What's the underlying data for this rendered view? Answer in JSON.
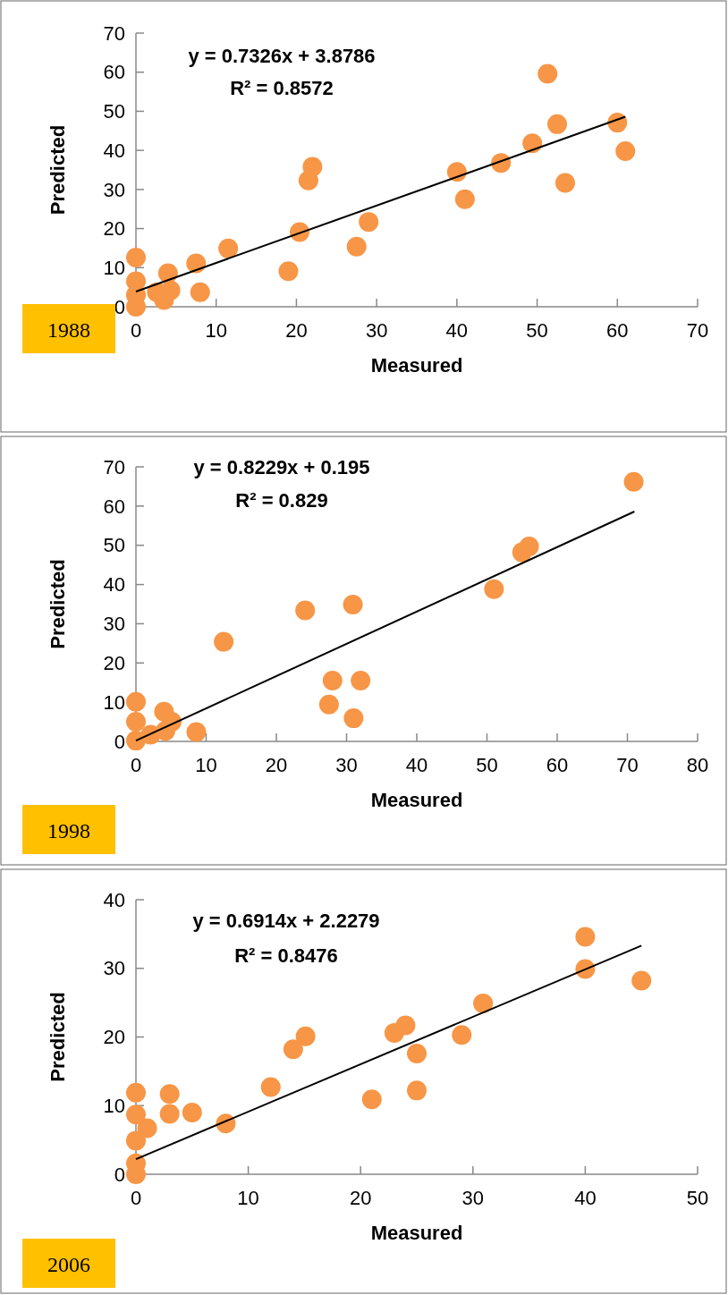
{
  "chart_data": [
    {
      "type": "scatter",
      "xlabel": "Measured",
      "ylabel": "Predicted",
      "xlim": [
        0,
        70
      ],
      "ylim": [
        0,
        70
      ],
      "xticks": [
        0,
        10,
        20,
        30,
        40,
        50,
        60,
        70
      ],
      "yticks": [
        0,
        10,
        20,
        30,
        40,
        50,
        60,
        70
      ],
      "grid": false,
      "annotations": [
        "y = 0.7326x + 3.8786",
        "R² = 0.8572",
        "1988"
      ],
      "series": [
        {
          "color": "#f79646",
          "marker": "circle",
          "x": [
            0,
            0,
            0,
            0,
            2.6,
            3.5,
            4.0,
            4.3,
            7.5,
            8.0,
            11.5,
            19.0,
            20.4,
            21.5,
            22.0,
            27.5,
            29.0,
            40.0,
            41.0,
            45.5,
            49.4,
            51.3,
            52.5,
            53.5,
            60.0,
            61.0
          ],
          "values": [
            12.6,
            6.5,
            3,
            0,
            3.7,
            1.7,
            8.6,
            4.2,
            11.1,
            3.7,
            14.9,
            9.1,
            19.1,
            32.3,
            35.8,
            15.4,
            21.7,
            34.5,
            27.5,
            36.8,
            41.8,
            59.6,
            46.7,
            31.7,
            47.1,
            39.8
          ]
        },
        {
          "type": "line",
          "color": "#000000",
          "marker": "none",
          "x": [
            0,
            61
          ],
          "values": [
            3.9,
            48.6
          ]
        }
      ]
    },
    {
      "type": "scatter",
      "xlabel": "Measured",
      "ylabel": "Predicted",
      "xlim": [
        0,
        80
      ],
      "ylim": [
        0,
        70
      ],
      "xticks": [
        0,
        10,
        20,
        30,
        40,
        50,
        60,
        70,
        80
      ],
      "yticks": [
        0,
        10,
        20,
        30,
        40,
        50,
        60,
        70
      ],
      "grid": false,
      "annotations": [
        "y = 0.8229x + 0.195",
        "R² = 0.829",
        "1998"
      ],
      "series": [
        {
          "color": "#f79646",
          "marker": "circle",
          "x": [
            0,
            0,
            0,
            2.1,
            4.0,
            4.2,
            5.1,
            8.6,
            12.5,
            24.1,
            27.5,
            28.0,
            30.9,
            31.0,
            32.0,
            51.0,
            55.0,
            56.0,
            70.9
          ],
          "values": [
            10.1,
            5.0,
            0.2,
            1.7,
            7.6,
            2.7,
            5.0,
            2.4,
            25.4,
            33.4,
            9.4,
            15.5,
            34.9,
            5.9,
            15.5,
            38.8,
            48.2,
            49.7,
            66.2
          ]
        },
        {
          "type": "line",
          "color": "#000000",
          "marker": "none",
          "x": [
            0,
            71
          ],
          "values": [
            0.2,
            58.6
          ]
        }
      ]
    },
    {
      "type": "scatter",
      "xlabel": "Measured",
      "ylabel": "Predicted",
      "xlim": [
        0,
        50
      ],
      "ylim": [
        0,
        40
      ],
      "xticks": [
        0,
        10,
        20,
        30,
        40,
        50
      ],
      "yticks": [
        0,
        10,
        20,
        30,
        40
      ],
      "grid": false,
      "annotations": [
        "y = 0.6914x + 2.2279",
        "R² = 0.8476",
        "2006"
      ],
      "series": [
        {
          "color": "#f79646",
          "marker": "circle",
          "x": [
            0,
            0,
            0,
            0,
            0,
            1.0,
            3.0,
            3.0,
            5.0,
            8.0,
            12.0,
            14.0,
            15.1,
            21.0,
            23.0,
            24.0,
            25.0,
            25.0,
            29.0,
            30.9,
            40.0,
            40.0,
            45.0
          ],
          "values": [
            11.9,
            8.7,
            4.9,
            1.6,
            0,
            6.7,
            8.8,
            11.7,
            9.0,
            7.4,
            12.7,
            18.2,
            20.1,
            10.9,
            20.6,
            21.7,
            17.6,
            12.2,
            20.3,
            24.9,
            34.6,
            29.9,
            28.2
          ]
        },
        {
          "type": "line",
          "color": "#000000",
          "marker": "none",
          "x": [
            0,
            45
          ],
          "values": [
            2.2,
            33.3
          ]
        }
      ]
    }
  ]
}
